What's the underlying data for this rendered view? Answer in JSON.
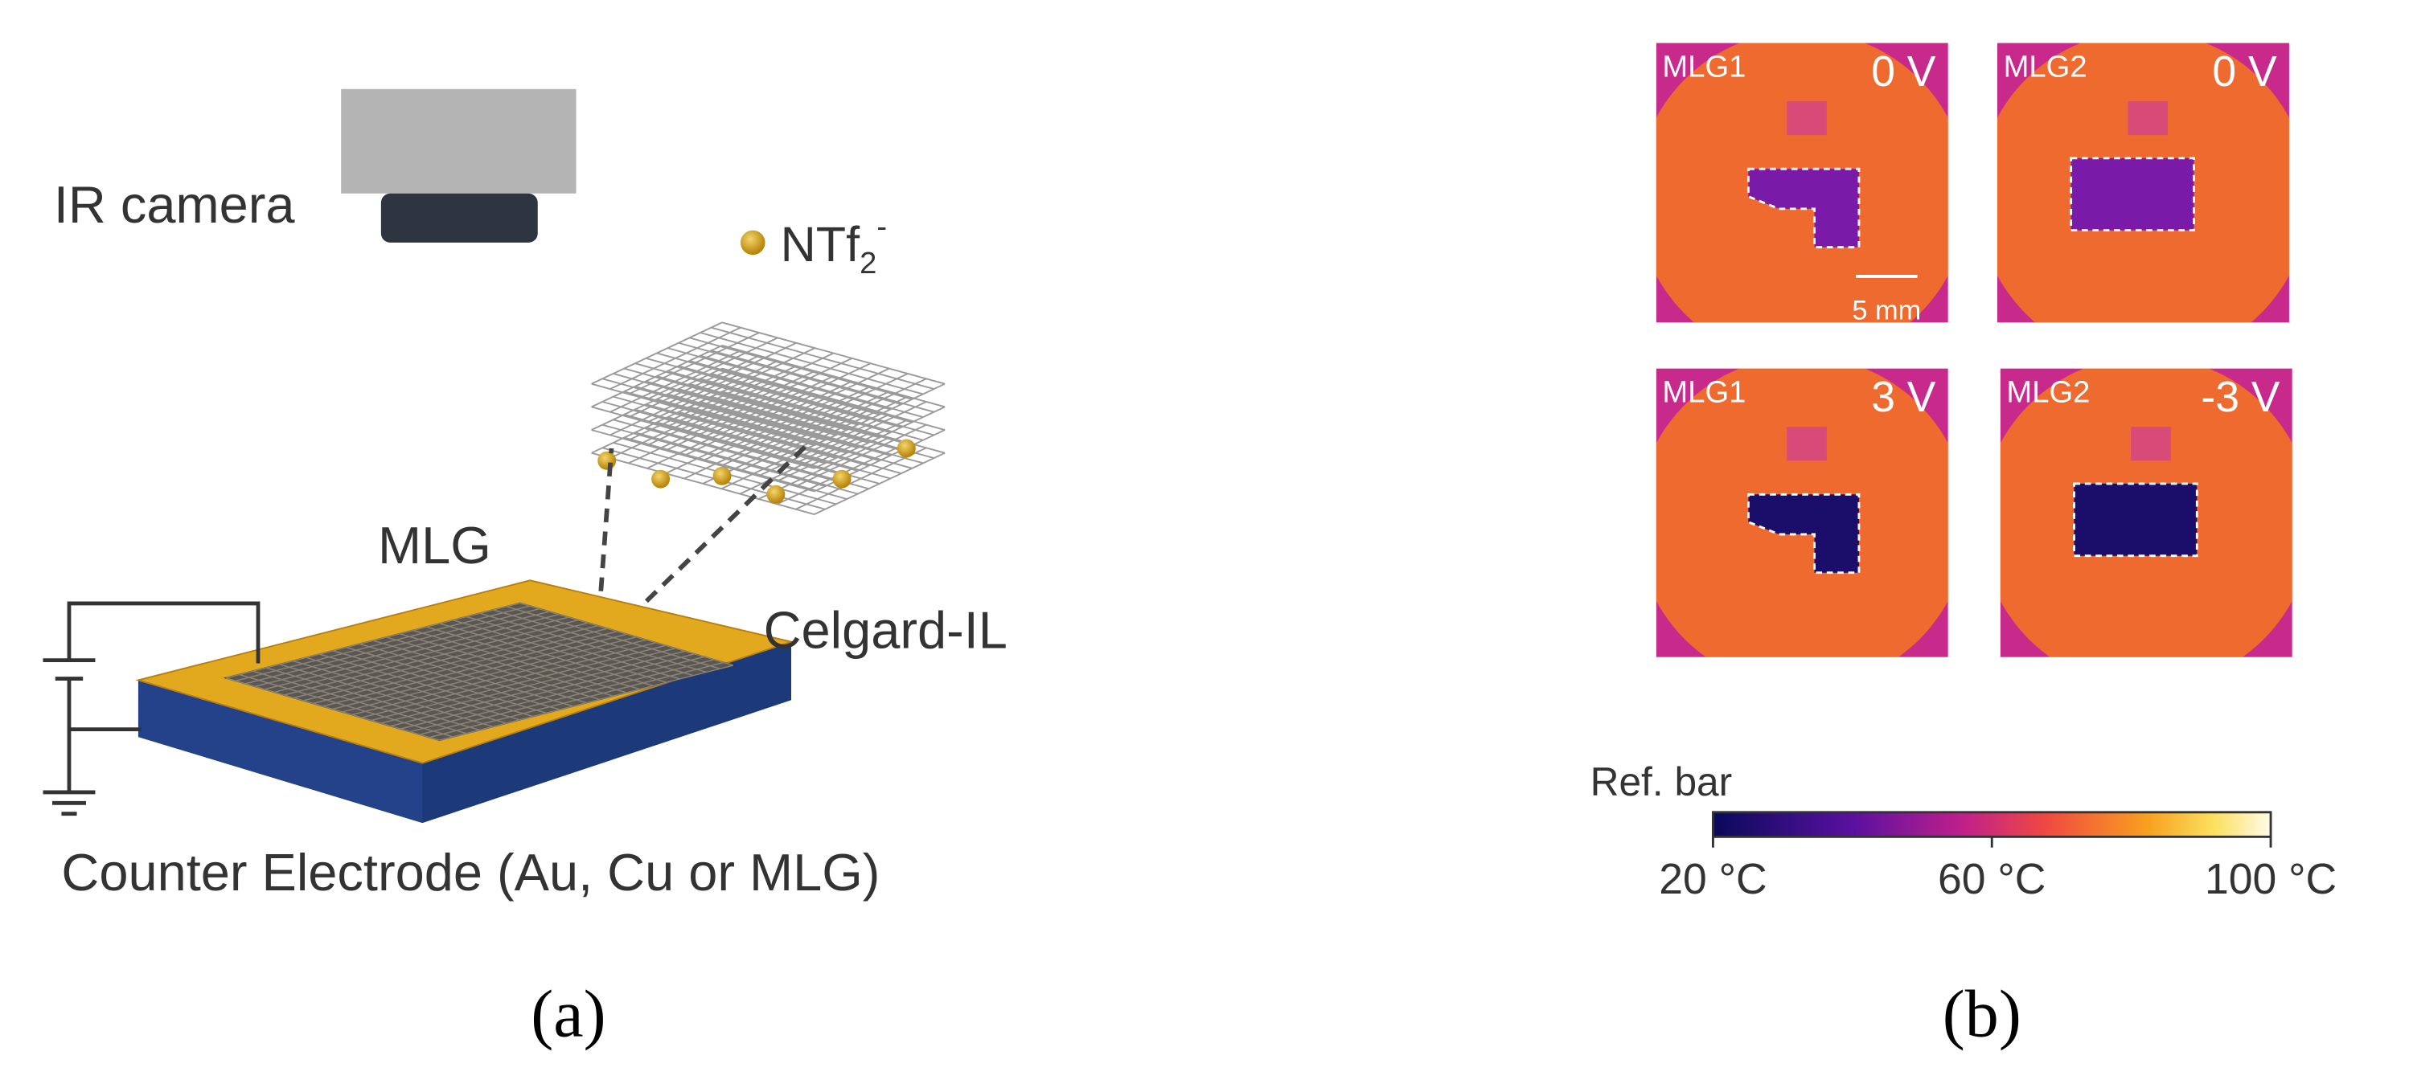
{
  "panel_a": {
    "camera_label": "IR camera",
    "ion_label": {
      "base": "NTf",
      "sub": "2",
      "sup": "-"
    },
    "top_label": "MLG",
    "separator_label": "Celgard-IL",
    "electrode_label": "Counter Electrode (Au, Cu or MLG)",
    "caption": "(a)"
  },
  "panel_b": {
    "images": [
      {
        "sample": "MLG1",
        "voltage": "0 V"
      },
      {
        "sample": "MLG2",
        "voltage": "0 V"
      },
      {
        "sample": "MLG1",
        "voltage": "3 V"
      },
      {
        "sample": "MLG2",
        "voltage": "-3 V"
      }
    ],
    "scale_bar": "5 mm",
    "colorbar": {
      "title": "Ref. bar",
      "tick_labels": [
        "20 °C",
        "60 °C",
        "100 °C"
      ]
    },
    "caption": "(b)"
  }
}
